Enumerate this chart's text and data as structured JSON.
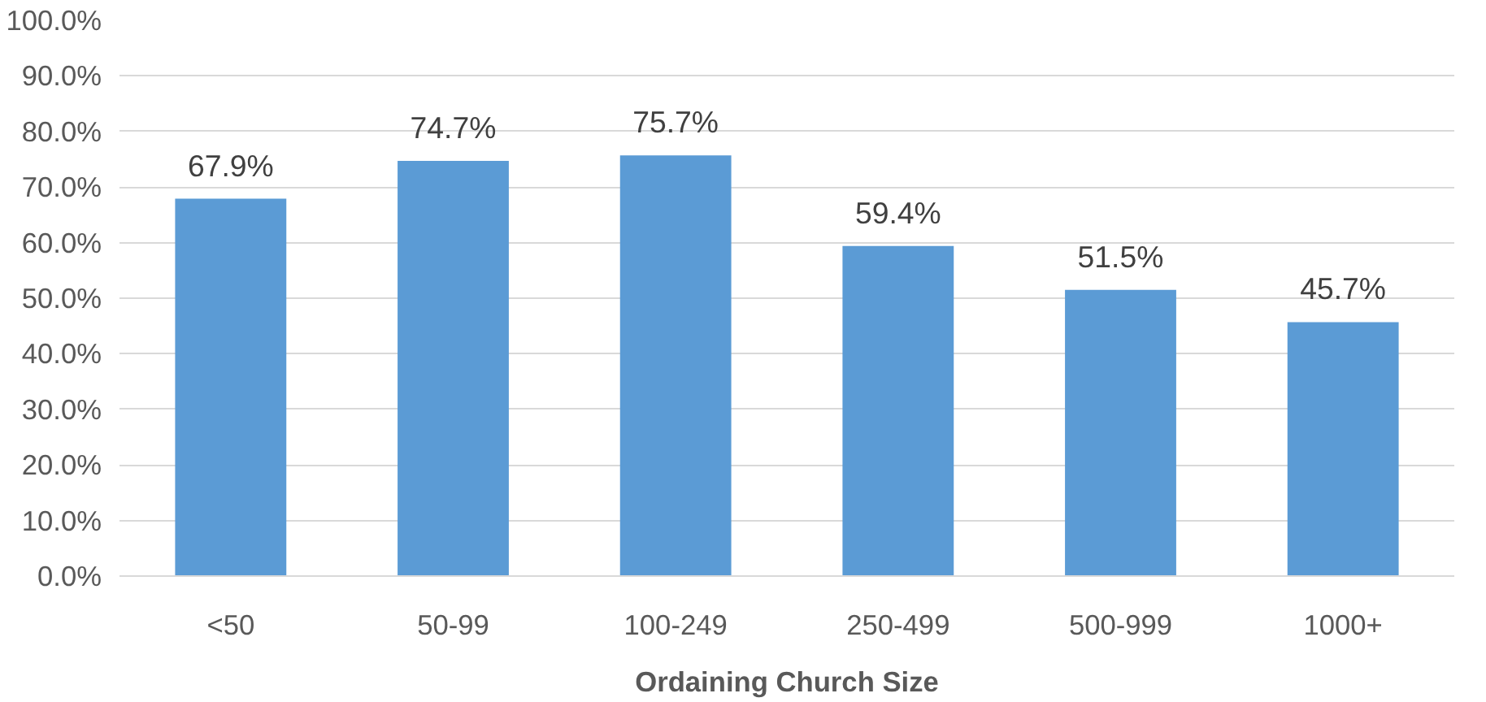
{
  "chart_data": {
    "type": "bar",
    "xlabel": "Ordaining Church Size",
    "categories": [
      "<50",
      "50-99",
      "100-249",
      "250-499",
      "500-999",
      "1000+"
    ],
    "values": [
      67.9,
      74.7,
      75.7,
      59.4,
      51.5,
      45.7
    ],
    "value_labels": [
      "67.9%",
      "74.7%",
      "75.7%",
      "59.4%",
      "51.5%",
      "45.7%"
    ],
    "color": "#5b9bd5",
    "ylim": [
      0,
      100
    ],
    "yticks": [
      {
        "value": 0,
        "label": "0.0%"
      },
      {
        "value": 10,
        "label": "10.0%"
      },
      {
        "value": 20,
        "label": "20.0%"
      },
      {
        "value": 30,
        "label": "30.0%"
      },
      {
        "value": 40,
        "label": "40.0%"
      },
      {
        "value": 50,
        "label": "50.0%"
      },
      {
        "value": 60,
        "label": "60.0%"
      },
      {
        "value": 70,
        "label": "70.0%"
      },
      {
        "value": 80,
        "label": "80.0%"
      },
      {
        "value": 90,
        "label": "90.0%"
      },
      {
        "value": 100,
        "label": "100.0%"
      }
    ],
    "grid": "y"
  }
}
